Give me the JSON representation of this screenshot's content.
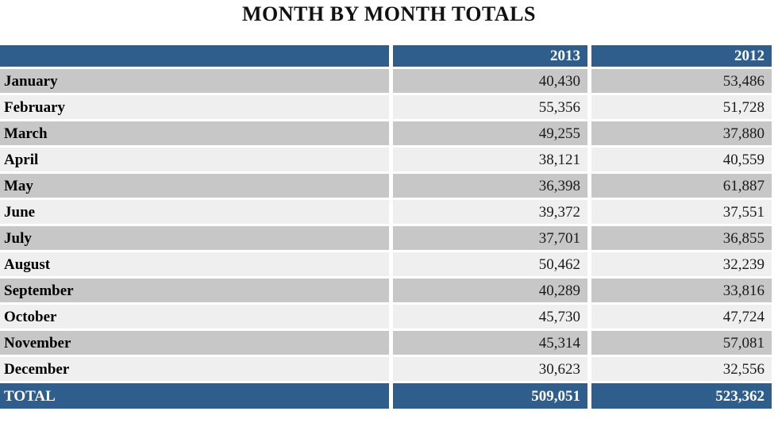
{
  "title": "MONTH BY MONTH TOTALS",
  "colors": {
    "header_bg": "#2F5D8C",
    "total_bg": "#2F5D8C",
    "row_gray": "#C7C7C7",
    "row_light": "#EFEFEF",
    "header_text": "#FFFFFF",
    "body_text": "#000000"
  },
  "table": {
    "columns": [
      "",
      "2013",
      "2012"
    ],
    "rows": [
      {
        "label": "January",
        "y2013": "40,430",
        "y2012": "53,486"
      },
      {
        "label": "February",
        "y2013": "55,356",
        "y2012": "51,728"
      },
      {
        "label": "March",
        "y2013": "49,255",
        "y2012": "37,880"
      },
      {
        "label": "April",
        "y2013": "38,121",
        "y2012": "40,559"
      },
      {
        "label": "May",
        "y2013": "36,398",
        "y2012": "61,887"
      },
      {
        "label": "June",
        "y2013": "39,372",
        "y2012": "37,551"
      },
      {
        "label": "July",
        "y2013": "37,701",
        "y2012": "36,855"
      },
      {
        "label": "August",
        "y2013": "50,462",
        "y2012": "32,239"
      },
      {
        "label": "September",
        "y2013": "40,289",
        "y2012": "33,816"
      },
      {
        "label": "October",
        "y2013": "45,730",
        "y2012": "47,724"
      },
      {
        "label": "November",
        "y2013": "45,314",
        "y2012": "57,081"
      },
      {
        "label": "December",
        "y2013": "30,623",
        "y2012": "32,556"
      }
    ],
    "total": {
      "label": "TOTAL",
      "y2013": "509,051",
      "y2012": "523,362"
    }
  },
  "chart_data": {
    "type": "table",
    "title": "MONTH BY MONTH TOTALS",
    "categories": [
      "January",
      "February",
      "March",
      "April",
      "May",
      "June",
      "July",
      "August",
      "September",
      "October",
      "November",
      "December",
      "TOTAL"
    ],
    "series": [
      {
        "name": "2013",
        "values": [
          40430,
          55356,
          49255,
          38121,
          36398,
          39372,
          37701,
          50462,
          40289,
          45730,
          45314,
          30623,
          509051
        ]
      },
      {
        "name": "2012",
        "values": [
          53486,
          51728,
          37880,
          40559,
          61887,
          37551,
          36855,
          32239,
          33816,
          47724,
          57081,
          32556,
          523362
        ]
      }
    ],
    "layout": {
      "header_row": true,
      "total_row": true,
      "alternating_row_shading": true
    }
  }
}
